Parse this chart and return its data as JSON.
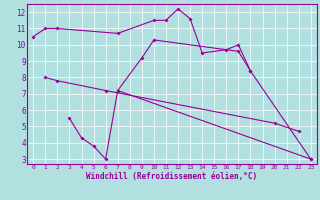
{
  "xlabel": "Windchill (Refroidissement éolien,°C)",
  "bg_color": "#b2e0e0",
  "grid_color": "#ffffff",
  "line_color": "#990099",
  "xlim": [
    -0.5,
    23.5
  ],
  "ylim": [
    2.7,
    12.5
  ],
  "xticks": [
    0,
    1,
    2,
    3,
    4,
    5,
    6,
    7,
    8,
    9,
    10,
    11,
    12,
    13,
    14,
    15,
    16,
    17,
    18,
    19,
    20,
    21,
    22,
    23
  ],
  "yticks": [
    3,
    4,
    5,
    6,
    7,
    8,
    9,
    10,
    11,
    12
  ],
  "line1_x": [
    0,
    1,
    2,
    7,
    10,
    11,
    12,
    13,
    14,
    16,
    17,
    18
  ],
  "line1_y": [
    10.5,
    11.0,
    11.0,
    10.7,
    11.5,
    11.5,
    12.2,
    11.6,
    9.5,
    9.7,
    10.0,
    8.4
  ],
  "line2_x": [
    7,
    23
  ],
  "line2_y": [
    7.2,
    3.0
  ],
  "line3_x": [
    1,
    2,
    6,
    20,
    22
  ],
  "line3_y": [
    8.0,
    7.8,
    7.2,
    5.2,
    4.7
  ],
  "line4_x": [
    3,
    4,
    5,
    6,
    7,
    9,
    10,
    17,
    18,
    23
  ],
  "line4_y": [
    5.5,
    4.3,
    3.8,
    3.0,
    7.2,
    9.2,
    10.3,
    9.6,
    8.4,
    3.0
  ]
}
